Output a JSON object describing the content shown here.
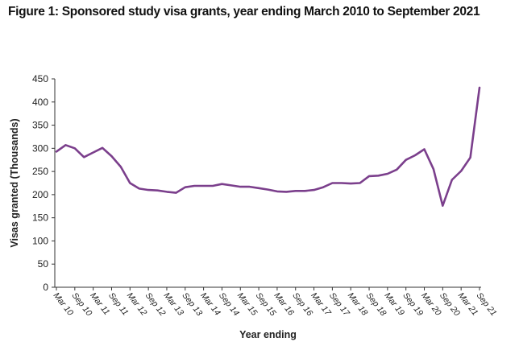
{
  "title": "Figure 1: Sponsored study visa grants, year ending March 2010 to September 2021",
  "chart_data": {
    "type": "line",
    "xlabel": "Year ending",
    "ylabel": "Visas granted (Thousands)",
    "ylim": [
      0,
      450
    ],
    "yticks": [
      0,
      50,
      100,
      150,
      200,
      250,
      300,
      350,
      400,
      450
    ],
    "x_tick_labels": [
      "Mar 10",
      "Sep 10",
      "Mar 11",
      "Sep 11",
      "Mar 12",
      "Sep 12",
      "Mar 13",
      "Sep 13",
      "Mar 14",
      "Sep 14",
      "Mar 15",
      "Sep 15",
      "Mar 16",
      "Sep 16",
      "Mar 17",
      "Sep 17",
      "Mar 18",
      "Sep 18",
      "Mar 19",
      "Sep 19",
      "Mar 20",
      "Sep 20",
      "Mar 21",
      "Sep 21"
    ],
    "grid": false,
    "series": [
      {
        "name": "",
        "color": "#7b3f8c",
        "x": [
          "Mar 10",
          "Jun 10",
          "Sep 10",
          "Dec 10",
          "Mar 11",
          "Jun 11",
          "Sep 11",
          "Dec 11",
          "Mar 12",
          "Jun 12",
          "Sep 12",
          "Dec 12",
          "Mar 13",
          "Jun 13",
          "Sep 13",
          "Dec 13",
          "Mar 14",
          "Jun 14",
          "Sep 14",
          "Dec 14",
          "Mar 15",
          "Jun 15",
          "Sep 15",
          "Dec 15",
          "Mar 16",
          "Jun 16",
          "Sep 16",
          "Dec 16",
          "Mar 17",
          "Jun 17",
          "Sep 17",
          "Dec 17",
          "Mar 18",
          "Jun 18",
          "Sep 18",
          "Dec 18",
          "Mar 19",
          "Jun 19",
          "Sep 19",
          "Dec 19",
          "Mar 20",
          "Jun 20",
          "Sep 20",
          "Dec 20",
          "Mar 21",
          "Jun 21",
          "Sep 21"
        ],
        "values": [
          293,
          307,
          300,
          281,
          291,
          301,
          283,
          260,
          225,
          213,
          210,
          209,
          206,
          204,
          216,
          219,
          219,
          219,
          223,
          220,
          217,
          217,
          214,
          211,
          207,
          206,
          208,
          208,
          210,
          216,
          225,
          225,
          224,
          225,
          240,
          241,
          245,
          254,
          275,
          285,
          298,
          255,
          176,
          232,
          251,
          280,
          431
        ]
      }
    ]
  }
}
